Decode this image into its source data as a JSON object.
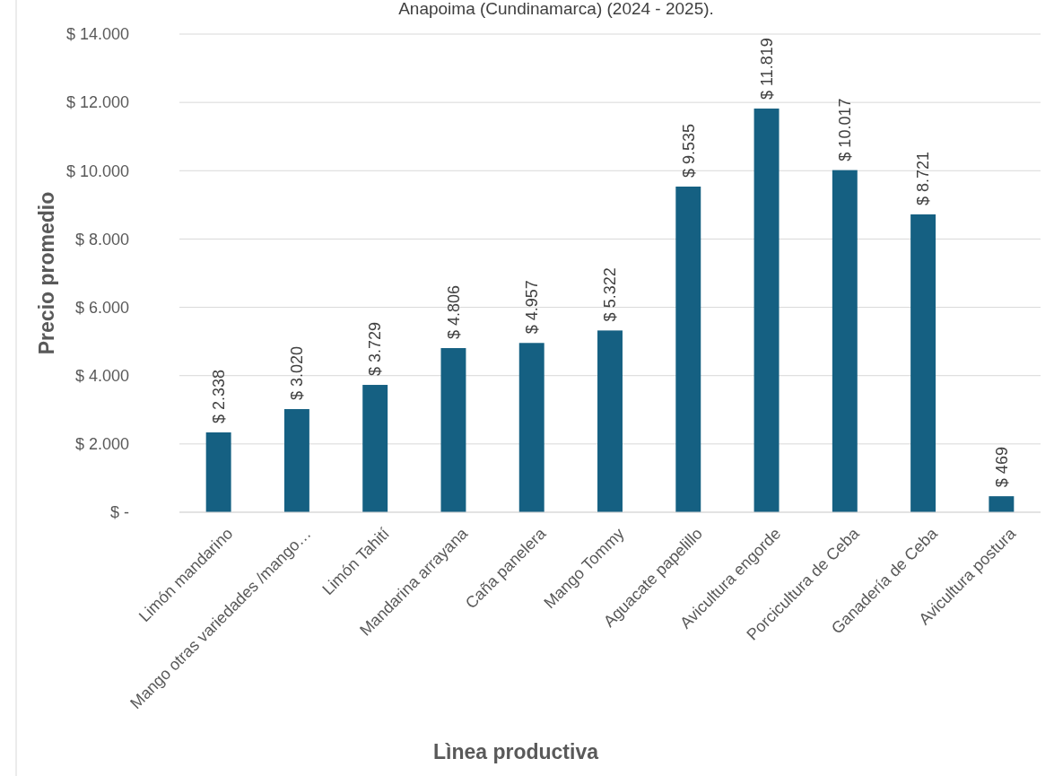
{
  "chart_data": {
    "type": "bar",
    "title": "Anapoima (Cundinamarca) (2024 - 2025).",
    "xlabel": "Lìnea productiva",
    "ylabel": "Precio promedio",
    "categories": [
      "Limón mandarino",
      "Mango otras variedades /mango…",
      "Limón Tahití",
      "Mandarina arrayana",
      "Caña panelera",
      "Mango Tommy",
      "Aguacate papelillo",
      "Avicultura engorde",
      "Porcicultura de Ceba",
      "Ganadería de Ceba",
      "Avicultura postura"
    ],
    "values": [
      2338,
      3020,
      3729,
      4806,
      4957,
      5322,
      9535,
      11819,
      10017,
      8721,
      469
    ],
    "value_labels": [
      "$ 2.338",
      "$ 3.020",
      "$ 3.729",
      "$ 4.806",
      "$ 4.957",
      "$ 5.322",
      "$ 9.535",
      "$ 11.819",
      "$ 10.017",
      "$ 8.721",
      "$ 469"
    ],
    "color": "#156082",
    "ylim": [
      0,
      14000
    ],
    "yticks": [
      {
        "value": 0,
        "label": "$ -"
      },
      {
        "value": 2000,
        "label": "$ 2.000"
      },
      {
        "value": 4000,
        "label": "$ 4.000"
      },
      {
        "value": 6000,
        "label": "$ 6.000"
      },
      {
        "value": 8000,
        "label": "$ 8.000"
      },
      {
        "value": 10000,
        "label": "$ 10.000"
      },
      {
        "value": 12000,
        "label": "$ 12.000"
      },
      {
        "value": 14000,
        "label": "$ 14.000"
      }
    ],
    "grid": "y"
  }
}
